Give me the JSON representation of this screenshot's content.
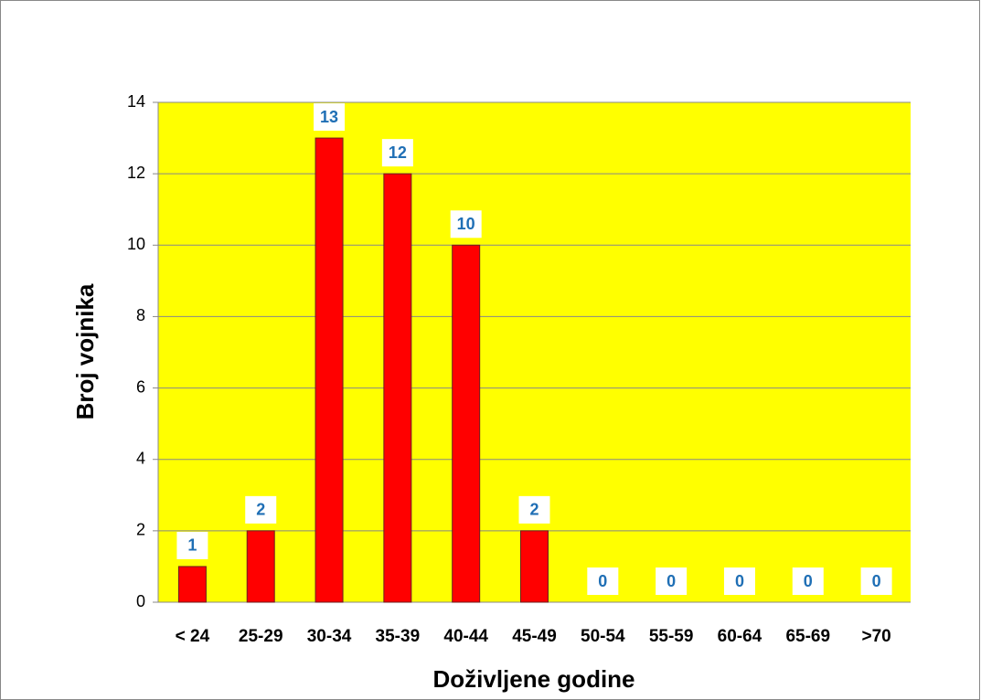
{
  "chart_data": {
    "type": "bar",
    "x_label": "Doživljene godine",
    "y_label": "Broj vojnika",
    "categories": [
      "< 24",
      "25-29",
      "30-34",
      "35-39",
      "40-44",
      "45-49",
      "50-54",
      "55-59",
      "60-64",
      "65-69",
      ">70"
    ],
    "values": [
      1,
      2,
      13,
      12,
      10,
      2,
      0,
      0,
      0,
      0,
      0
    ],
    "color": "#ff0000",
    "background": "#ffff00",
    "label_color": "#1f6fb5",
    "ylim": [
      0,
      14
    ],
    "yticks": [
      0,
      2,
      4,
      6,
      8,
      10,
      12,
      14
    ],
    "grid": true
  }
}
